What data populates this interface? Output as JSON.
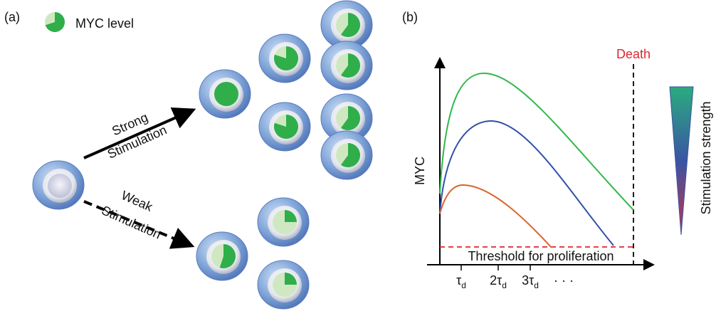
{
  "panel_a": {
    "label": "(a)",
    "legend": "MYC level",
    "strong_arrow": [
      "Strong",
      "Stimulation"
    ],
    "weak_arrow": [
      "Weak",
      "Stimulation"
    ]
  },
  "panel_b": {
    "label": "(b)",
    "death": "Death",
    "y_axis": "MYC",
    "threshold": "Threshold for proliferation",
    "x_ticks": [
      {
        "base": "τ",
        "sub": "d"
      },
      {
        "base": "2τ",
        "sub": "d"
      },
      {
        "base": "3τ",
        "sub": "d"
      }
    ],
    "ellipsis": "· · ·",
    "scale_label": "Stimulation strength"
  }
}
